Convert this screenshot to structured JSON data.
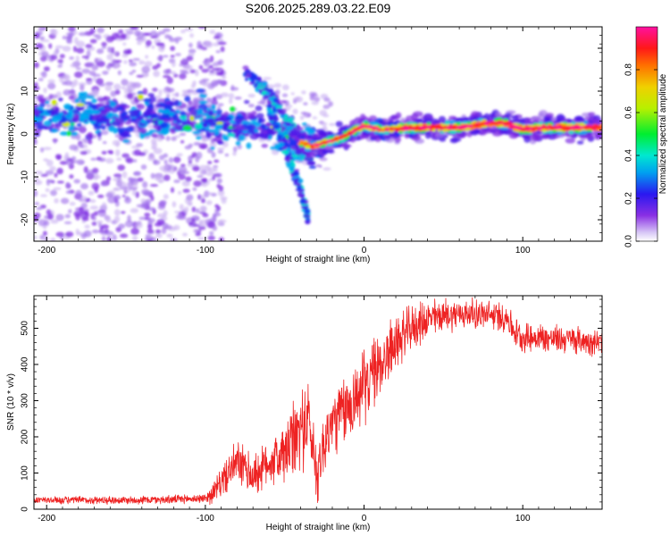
{
  "title": "S206.2025.289.03.22.E09",
  "chart_data": [
    {
      "type": "heatmap",
      "name": "spectrogram",
      "xlabel": "Height of straight line (km)",
      "ylabel": "Frequency (Hz)",
      "xlim": [
        -208,
        150
      ],
      "ylim": [
        -25,
        25
      ],
      "xticks": [
        -200,
        -100,
        0,
        100
      ],
      "yticks": [
        -20,
        -10,
        0,
        10,
        20
      ],
      "colorbar": {
        "label": "Normalized spectral amplitude",
        "range": [
          0.0,
          1.0
        ],
        "ticks": [
          0.0,
          0.2,
          0.4,
          0.6,
          0.8
        ],
        "tick_labels": [
          "0.0",
          "0.2",
          "0.4",
          "0.6",
          "0.8"
        ],
        "colors": [
          "#ffffff",
          "#b9a0ee",
          "#7a1fe0",
          "#1020f0",
          "#00d8e8",
          "#00ee40",
          "#e8ee00",
          "#ff7a00",
          "#ff1010",
          "#ff1090"
        ]
      },
      "ridge_main": [
        [
          -208,
          4
        ],
        [
          -180,
          4
        ],
        [
          -150,
          4
        ],
        [
          -120,
          4
        ],
        [
          -100,
          3
        ],
        [
          -90,
          2
        ],
        [
          -80,
          2
        ],
        [
          -70,
          2
        ],
        [
          -60,
          1
        ],
        [
          -50,
          0
        ],
        [
          -40,
          -2
        ],
        [
          -33,
          -3
        ],
        [
          -25,
          -2
        ],
        [
          -15,
          -1
        ],
        [
          -5,
          1
        ],
        [
          0,
          2
        ],
        [
          10,
          1
        ],
        [
          30,
          1.5
        ],
        [
          60,
          1.5
        ],
        [
          80,
          2.5
        ],
        [
          90,
          2.5
        ],
        [
          100,
          1
        ],
        [
          110,
          1.5
        ],
        [
          130,
          1.5
        ],
        [
          150,
          1.5
        ]
      ],
      "ridge_descending": [
        [
          -75,
          15
        ],
        [
          -65,
          11
        ],
        [
          -55,
          7
        ],
        [
          -48,
          3
        ],
        [
          -42,
          -1
        ],
        [
          -37,
          -5
        ]
      ],
      "ridge_lower": [
        [
          -60,
          6
        ],
        [
          -55,
          2
        ],
        [
          -50,
          -3
        ],
        [
          -45,
          -8
        ],
        [
          -40,
          -13
        ],
        [
          -35,
          -20
        ]
      ]
    },
    {
      "type": "line",
      "name": "snr",
      "xlabel": "Height of straight line (km)",
      "ylabel": "SNR (10 * v/v)",
      "xlim": [
        -208,
        150
      ],
      "ylim": [
        0,
        590
      ],
      "xticks": [
        -200,
        -100,
        0,
        100
      ],
      "yticks": [
        0,
        100,
        200,
        300,
        400,
        500
      ],
      "color": "#ee2222",
      "envelope": [
        [
          -208,
          25
        ],
        [
          -150,
          25
        ],
        [
          -120,
          27
        ],
        [
          -100,
          30
        ],
        [
          -95,
          45
        ],
        [
          -90,
          75
        ],
        [
          -80,
          130
        ],
        [
          -70,
          90
        ],
        [
          -60,
          130
        ],
        [
          -50,
          150
        ],
        [
          -40,
          220
        ],
        [
          -35,
          250
        ],
        [
          -30,
          100
        ],
        [
          -25,
          180
        ],
        [
          -20,
          240
        ],
        [
          -10,
          280
        ],
        [
          0,
          340
        ],
        [
          10,
          400
        ],
        [
          20,
          460
        ],
        [
          30,
          500
        ],
        [
          40,
          525
        ],
        [
          50,
          535
        ],
        [
          60,
          540
        ],
        [
          70,
          540
        ],
        [
          80,
          535
        ],
        [
          90,
          530
        ],
        [
          95,
          490
        ],
        [
          100,
          475
        ],
        [
          110,
          475
        ],
        [
          120,
          470
        ],
        [
          130,
          470
        ],
        [
          140,
          465
        ],
        [
          150,
          460
        ]
      ],
      "spread": [
        [
          -208,
          10
        ],
        [
          -100,
          12
        ],
        [
          -95,
          30
        ],
        [
          -80,
          60
        ],
        [
          -60,
          60
        ],
        [
          -40,
          120
        ],
        [
          -30,
          90
        ],
        [
          -20,
          90
        ],
        [
          -10,
          100
        ],
        [
          0,
          100
        ],
        [
          10,
          90
        ],
        [
          30,
          60
        ],
        [
          60,
          40
        ],
        [
          90,
          40
        ],
        [
          100,
          40
        ],
        [
          150,
          35
        ]
      ]
    }
  ]
}
